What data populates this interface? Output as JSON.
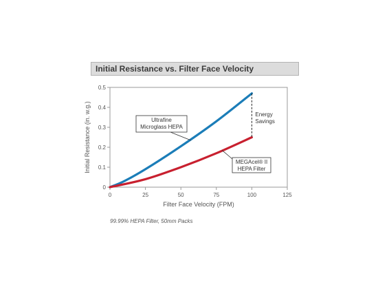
{
  "chart_data": {
    "type": "line",
    "title": "Initial Resistance vs. Filter Face Velocity",
    "xlabel": "Filter Face Velocity (FPM)",
    "ylabel": "Initial Resistance (in. w.g.)",
    "xlim": [
      0,
      125
    ],
    "ylim": [
      0,
      0.5
    ],
    "x_ticks": [
      "0",
      "25",
      "50",
      "75",
      "100",
      "125"
    ],
    "y_ticks": [
      "0",
      "0.1",
      "0.2",
      "0.3",
      "0.4",
      "0.5"
    ],
    "grid": false,
    "series": [
      {
        "name": "Ultrafine Microglass HEPA",
        "color": "#1b7db8",
        "x": [
          0,
          10,
          25,
          50,
          75,
          100
        ],
        "y": [
          0,
          0.03,
          0.09,
          0.205,
          0.33,
          0.47
        ]
      },
      {
        "name": "MEGAcel® II HEPA Filter",
        "color": "#c8202f",
        "x": [
          0,
          25,
          50,
          75,
          100
        ],
        "y": [
          0,
          0.04,
          0.1,
          0.17,
          0.25
        ]
      }
    ],
    "annotations": {
      "series1_label": [
        "Ultrafine",
        "Microglass HEPA"
      ],
      "series2_label": [
        "MEGAcel® II",
        "HEPA Filter"
      ],
      "gap_label": [
        "Energy",
        "Savings"
      ]
    },
    "footnote": "99.99% HEPA Filter, 50mm Packs"
  }
}
